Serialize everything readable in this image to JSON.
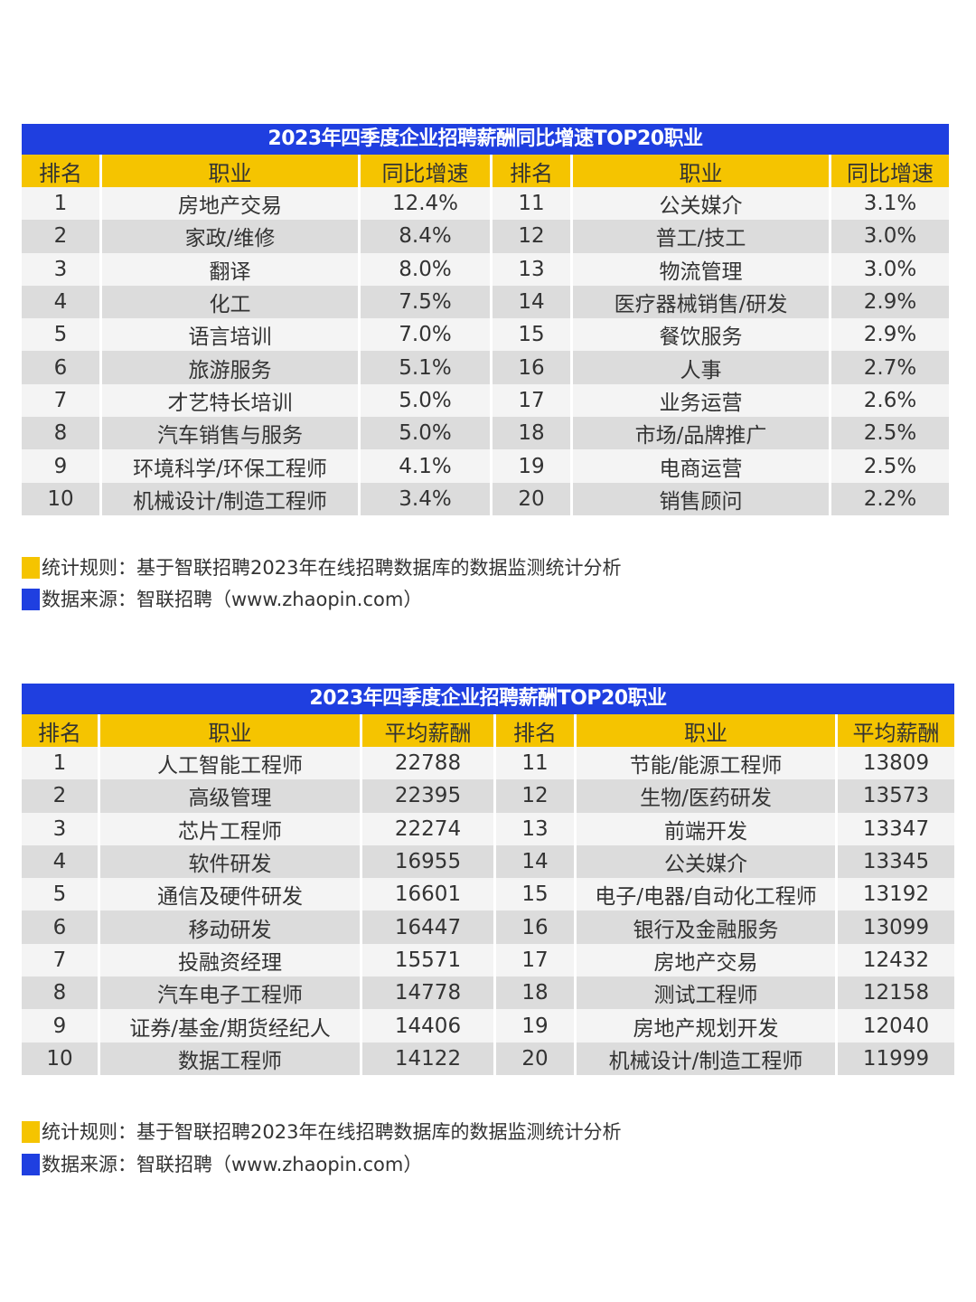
{
  "colors": {
    "title_bar": "#1f3fe0",
    "header": "#f5c400",
    "row_light": "#f4f4f4",
    "row_dark": "#dcdcdc"
  },
  "table1": {
    "title": "2023年四季度企业招聘薪酬同比增速TOP20职业",
    "headers": [
      "排名",
      "职业",
      "同比增速",
      "排名",
      "职业",
      "同比增速"
    ],
    "rows": [
      [
        "1",
        "房地产交易",
        "12.4%",
        "11",
        "公关媒介",
        "3.1%"
      ],
      [
        "2",
        "家政/维修",
        "8.4%",
        "12",
        "普工/技工",
        "3.0%"
      ],
      [
        "3",
        "翻译",
        "8.0%",
        "13",
        "物流管理",
        "3.0%"
      ],
      [
        "4",
        "化工",
        "7.5%",
        "14",
        "医疗器械销售/研发",
        "2.9%"
      ],
      [
        "5",
        "语言培训",
        "7.0%",
        "15",
        "餐饮服务",
        "2.9%"
      ],
      [
        "6",
        "旅游服务",
        "5.1%",
        "16",
        "人事",
        "2.7%"
      ],
      [
        "7",
        "才艺特长培训",
        "5.0%",
        "17",
        "业务运营",
        "2.6%"
      ],
      [
        "8",
        "汽车销售与服务",
        "5.0%",
        "18",
        "市场/品牌推广",
        "2.5%"
      ],
      [
        "9",
        "环境科学/环保工程师",
        "4.1%",
        "19",
        "电商运营",
        "2.5%"
      ],
      [
        "10",
        "机械设计/制造工程师",
        "3.4%",
        "20",
        "销售顾问",
        "2.2%"
      ]
    ],
    "note_rule": "统计规则：基于智联招聘2023年在线招聘数据库的数据监测统计分析",
    "note_source": "数据来源：智联招聘（www.zhaopin.com）"
  },
  "table2": {
    "title": "2023年四季度企业招聘薪酬TOP20职业",
    "headers": [
      "排名",
      "职业",
      "平均薪酬",
      "排名",
      "职业",
      "平均薪酬"
    ],
    "rows": [
      [
        "1",
        "人工智能工程师",
        "22788",
        "11",
        "节能/能源工程师",
        "13809"
      ],
      [
        "2",
        "高级管理",
        "22395",
        "12",
        "生物/医药研发",
        "13573"
      ],
      [
        "3",
        "芯片工程师",
        "22274",
        "13",
        "前端开发",
        "13347"
      ],
      [
        "4",
        "软件研发",
        "16955",
        "14",
        "公关媒介",
        "13345"
      ],
      [
        "5",
        "通信及硬件研发",
        "16601",
        "15",
        "电子/电器/自动化工程师",
        "13192"
      ],
      [
        "6",
        "移动研发",
        "16447",
        "16",
        "银行及金融服务",
        "13099"
      ],
      [
        "7",
        "投融资经理",
        "15571",
        "17",
        "房地产交易",
        "12432"
      ],
      [
        "8",
        "汽车电子工程师",
        "14778",
        "18",
        "测试工程师",
        "12158"
      ],
      [
        "9",
        "证券/基金/期货经纪人",
        "14406",
        "19",
        "房地产规划开发",
        "12040"
      ],
      [
        "10",
        "数据工程师",
        "14122",
        "20",
        "机械设计/制造工程师",
        "11999"
      ]
    ],
    "note_rule": "统计规则：基于智联招聘2023年在线招聘数据库的数据监测统计分析",
    "note_source": "数据来源：智联招聘（www.zhaopin.com）"
  }
}
